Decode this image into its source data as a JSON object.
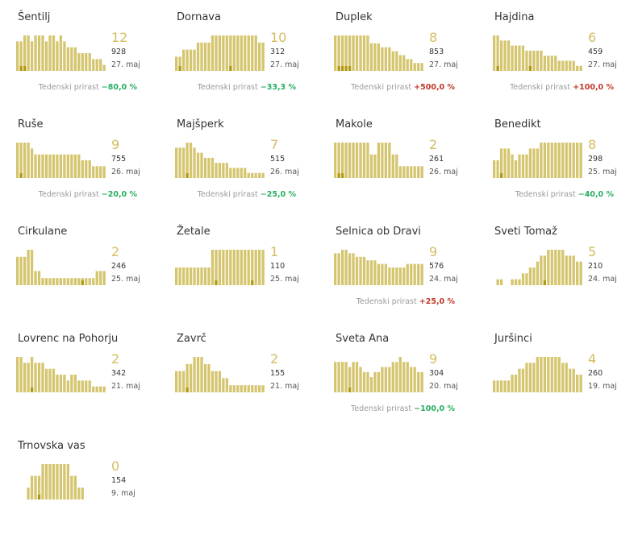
{
  "growth_label": "Tedenski prirast",
  "colors": {
    "bar": "#d4c56e",
    "avg": "#c9b965",
    "highlight": "#b29a10",
    "big": "#d4bd5e",
    "positive": "#c0392b",
    "negative": "#27ae60"
  },
  "chart_data": [
    {
      "type": "bar",
      "name": "Šentilj",
      "big": "12",
      "count": "928",
      "date": "27. maj",
      "growth": "−80,0 %",
      "growth_dir": "neg",
      "values": [
        5,
        5,
        6,
        6,
        5,
        6,
        6,
        6,
        5,
        6,
        6,
        5,
        6,
        5,
        4,
        4,
        4,
        3,
        3,
        3,
        3,
        2,
        2,
        2,
        1
      ],
      "highlight": [
        0,
        1,
        1,
        0,
        0,
        0,
        0,
        0,
        0,
        0,
        0,
        0,
        0,
        0,
        0,
        0,
        0,
        0,
        0,
        0,
        0,
        0,
        0,
        0,
        0
      ]
    },
    {
      "type": "bar",
      "name": "Dornava",
      "big": "10",
      "count": "312",
      "date": "27. maj",
      "growth": "−33,3 %",
      "growth_dir": "neg",
      "values": [
        2,
        2,
        3,
        3,
        3,
        3,
        4,
        4,
        4,
        4,
        5,
        5,
        5,
        5,
        5,
        5,
        5,
        5,
        5,
        5,
        5,
        5,
        5,
        4,
        4
      ],
      "highlight": [
        0,
        1,
        0,
        0,
        0,
        0,
        0,
        0,
        0,
        0,
        0,
        0,
        0,
        0,
        0,
        1,
        0,
        0,
        0,
        0,
        0,
        0,
        0,
        0,
        0
      ]
    },
    {
      "type": "bar",
      "name": "Duplek",
      "big": "8",
      "count": "853",
      "date": "27. maj",
      "growth": "+500,0 %",
      "growth_dir": "pos",
      "values": [
        9,
        9,
        9,
        9,
        9,
        9,
        9,
        9,
        9,
        9,
        7,
        7,
        7,
        6,
        6,
        6,
        5,
        5,
        4,
        4,
        3,
        3,
        2,
        2,
        2
      ],
      "highlight": [
        0,
        1,
        1,
        1,
        1,
        0,
        0,
        0,
        0,
        0,
        0,
        0,
        0,
        0,
        0,
        0,
        0,
        0,
        0,
        0,
        0,
        0,
        0,
        0,
        0
      ]
    },
    {
      "type": "bar",
      "name": "Hajdina",
      "big": "6",
      "count": "459",
      "date": "27. maj",
      "growth": "+100,0 %",
      "growth_dir": "pos",
      "values": [
        7,
        7,
        6,
        6,
        6,
        5,
        5,
        5,
        5,
        4,
        4,
        4,
        4,
        4,
        3,
        3,
        3,
        3,
        2,
        2,
        2,
        2,
        2,
        1,
        1
      ],
      "highlight": [
        0,
        1,
        0,
        0,
        0,
        0,
        0,
        0,
        0,
        0,
        1,
        0,
        0,
        0,
        0,
        0,
        0,
        0,
        0,
        0,
        0,
        0,
        0,
        0,
        0
      ]
    },
    {
      "type": "bar",
      "name": "Ruše",
      "big": "9",
      "count": "755",
      "date": "26. maj",
      "growth": "−20,0 %",
      "growth_dir": "neg",
      "values": [
        6,
        6,
        6,
        6,
        5,
        4,
        4,
        4,
        4,
        4,
        4,
        4,
        4,
        4,
        4,
        4,
        4,
        4,
        3,
        3,
        3,
        2,
        2,
        2,
        2
      ],
      "highlight": [
        0,
        1,
        0,
        0,
        0,
        0,
        0,
        0,
        0,
        0,
        0,
        0,
        0,
        0,
        0,
        0,
        0,
        0,
        0,
        0,
        0,
        0,
        0,
        0,
        0
      ]
    },
    {
      "type": "bar",
      "name": "Majšperk",
      "big": "7",
      "count": "515",
      "date": "26. maj",
      "growth": "−25,0 %",
      "growth_dir": "neg",
      "values": [
        6,
        6,
        6,
        7,
        7,
        6,
        5,
        5,
        4,
        4,
        4,
        3,
        3,
        3,
        3,
        2,
        2,
        2,
        2,
        2,
        1,
        1,
        1,
        1,
        1
      ],
      "highlight": [
        0,
        0,
        0,
        1,
        0,
        0,
        0,
        0,
        0,
        0,
        0,
        0,
        0,
        0,
        0,
        0,
        0,
        0,
        0,
        0,
        0,
        0,
        0,
        0,
        0
      ]
    },
    {
      "type": "bar",
      "name": "Makole",
      "big": "2",
      "count": "261",
      "date": "26. maj",
      "growth": "",
      "growth_dir": "",
      "values": [
        3,
        3,
        3,
        3,
        3,
        3,
        3,
        3,
        3,
        3,
        2,
        2,
        3,
        3,
        3,
        3,
        2,
        2,
        1,
        1,
        1,
        1,
        1,
        1,
        1
      ],
      "highlight": [
        0,
        1,
        1,
        0,
        0,
        0,
        0,
        0,
        0,
        0,
        0,
        0,
        0,
        0,
        0,
        0,
        0,
        0,
        0,
        0,
        0,
        0,
        0,
        0,
        0
      ]
    },
    {
      "type": "bar",
      "name": "Benedikt",
      "big": "8",
      "count": "298",
      "date": "25. maj",
      "growth": "−40,0 %",
      "growth_dir": "neg",
      "values": [
        3,
        3,
        5,
        5,
        5,
        4,
        3,
        4,
        4,
        4,
        5,
        5,
        5,
        6,
        6,
        6,
        6,
        6,
        6,
        6,
        6,
        6,
        6,
        6,
        6
      ],
      "highlight": [
        0,
        0,
        1,
        0,
        0,
        0,
        0,
        0,
        0,
        0,
        0,
        0,
        0,
        0,
        0,
        0,
        0,
        0,
        0,
        0,
        0,
        0,
        0,
        0,
        0
      ]
    },
    {
      "type": "bar",
      "name": "Cirkulane",
      "big": "2",
      "count": "246",
      "date": "25. maj",
      "growth": "",
      "growth_dir": "",
      "values": [
        4,
        4,
        4,
        5,
        5,
        2,
        2,
        1,
        1,
        1,
        1,
        1,
        1,
        1,
        1,
        1,
        1,
        1,
        1,
        1,
        1,
        1,
        2,
        2,
        2
      ],
      "highlight": [
        0,
        0,
        0,
        0,
        0,
        0,
        0,
        0,
        0,
        0,
        0,
        0,
        0,
        0,
        0,
        0,
        0,
        0,
        1,
        0,
        0,
        0,
        0,
        0,
        0
      ]
    },
    {
      "type": "bar",
      "name": "Žetale",
      "big": "1",
      "count": "110",
      "date": "25. maj",
      "growth": "",
      "growth_dir": "",
      "values": [
        1,
        1,
        1,
        1,
        1,
        1,
        1,
        1,
        1,
        1,
        2,
        2,
        2,
        2,
        2,
        2,
        2,
        2,
        2,
        2,
        2,
        2,
        2,
        2,
        2
      ],
      "highlight": [
        0,
        0,
        0,
        0,
        0,
        0,
        0,
        0,
        0,
        0,
        0,
        1,
        0,
        0,
        0,
        0,
        0,
        0,
        0,
        0,
        0,
        1,
        0,
        0,
        0
      ]
    },
    {
      "type": "bar",
      "name": "Selnica ob Dravi",
      "big": "9",
      "count": "576",
      "date": "24. maj",
      "growth": "+25,0 %",
      "growth_dir": "pos",
      "values": [
        9,
        9,
        10,
        10,
        9,
        9,
        8,
        8,
        8,
        7,
        7,
        7,
        6,
        6,
        6,
        5,
        5,
        5,
        5,
        5,
        6,
        6,
        6,
        6,
        6
      ],
      "highlight": [
        0,
        0,
        0,
        0,
        0,
        0,
        0,
        0,
        0,
        0,
        0,
        0,
        0,
        0,
        0,
        0,
        0,
        0,
        0,
        0,
        0,
        0,
        0,
        0,
        0
      ]
    },
    {
      "type": "bar",
      "name": "Sveti Tomaž",
      "big": "5",
      "count": "210",
      "date": "24. maj",
      "growth": "",
      "growth_dir": "",
      "values": [
        0,
        1,
        1,
        0,
        0,
        1,
        1,
        1,
        2,
        2,
        3,
        3,
        4,
        5,
        5,
        6,
        6,
        6,
        6,
        6,
        5,
        5,
        5,
        4,
        4
      ],
      "highlight": [
        0,
        0,
        0,
        0,
        0,
        0,
        0,
        0,
        0,
        0,
        0,
        0,
        0,
        0,
        1,
        0,
        0,
        0,
        0,
        0,
        0,
        0,
        0,
        0,
        0
      ]
    },
    {
      "type": "bar",
      "name": "Lovrenc na Pohorju",
      "big": "2",
      "count": "342",
      "date": "21. maj",
      "growth": "",
      "growth_dir": "",
      "values": [
        6,
        6,
        5,
        5,
        6,
        5,
        5,
        5,
        4,
        4,
        4,
        3,
        3,
        3,
        2,
        3,
        3,
        2,
        2,
        2,
        2,
        1,
        1,
        1,
        1
      ],
      "highlight": [
        0,
        0,
        0,
        0,
        1,
        0,
        0,
        0,
        0,
        0,
        0,
        0,
        0,
        0,
        0,
        0,
        0,
        0,
        0,
        0,
        0,
        0,
        0,
        0,
        0
      ]
    },
    {
      "type": "bar",
      "name": "Zavrč",
      "big": "2",
      "count": "155",
      "date": "21. maj",
      "growth": "",
      "growth_dir": "",
      "values": [
        3,
        3,
        3,
        4,
        4,
        5,
        5,
        5,
        4,
        4,
        3,
        3,
        3,
        2,
        2,
        1,
        1,
        1,
        1,
        1,
        1,
        1,
        1,
        1,
        1
      ],
      "highlight": [
        0,
        0,
        0,
        1,
        0,
        0,
        0,
        0,
        0,
        0,
        0,
        0,
        0,
        0,
        0,
        0,
        0,
        0,
        0,
        0,
        0,
        0,
        0,
        0,
        0
      ]
    },
    {
      "type": "bar",
      "name": "Sveta Ana",
      "big": "9",
      "count": "304",
      "date": "20. maj",
      "growth": "−100,0 %",
      "growth_dir": "neg",
      "values": [
        6,
        6,
        6,
        6,
        5,
        6,
        6,
        5,
        4,
        4,
        3,
        4,
        4,
        5,
        5,
        5,
        6,
        6,
        7,
        6,
        6,
        5,
        5,
        4,
        4
      ],
      "highlight": [
        0,
        0,
        0,
        0,
        1,
        0,
        0,
        0,
        0,
        0,
        0,
        0,
        0,
        0,
        0,
        0,
        0,
        0,
        0,
        0,
        0,
        0,
        0,
        0,
        0
      ]
    },
    {
      "type": "bar",
      "name": "Juršinci",
      "big": "4",
      "count": "260",
      "date": "19. maj",
      "growth": "",
      "growth_dir": "",
      "values": [
        2,
        2,
        2,
        2,
        2,
        3,
        3,
        4,
        4,
        5,
        5,
        5,
        6,
        6,
        6,
        6,
        6,
        6,
        6,
        5,
        5,
        4,
        4,
        3,
        3
      ],
      "highlight": [
        0,
        0,
        0,
        0,
        0,
        0,
        0,
        0,
        0,
        0,
        0,
        0,
        0,
        0,
        0,
        0,
        0,
        0,
        0,
        0,
        0,
        0,
        0,
        0,
        0
      ]
    },
    {
      "type": "bar",
      "name": "Trnovska vas",
      "big": "0",
      "count": "154",
      "date": "9. maj",
      "growth": "",
      "growth_dir": "",
      "values": [
        0,
        0,
        0,
        1,
        2,
        2,
        2,
        3,
        3,
        3,
        3,
        3,
        3,
        3,
        3,
        2,
        2,
        1,
        1,
        0,
        0,
        0,
        0,
        0,
        0
      ],
      "highlight": [
        0,
        0,
        0,
        0,
        0,
        0,
        1,
        0,
        0,
        0,
        0,
        0,
        0,
        0,
        0,
        0,
        0,
        0,
        0,
        0,
        0,
        0,
        0,
        0,
        0
      ]
    }
  ]
}
